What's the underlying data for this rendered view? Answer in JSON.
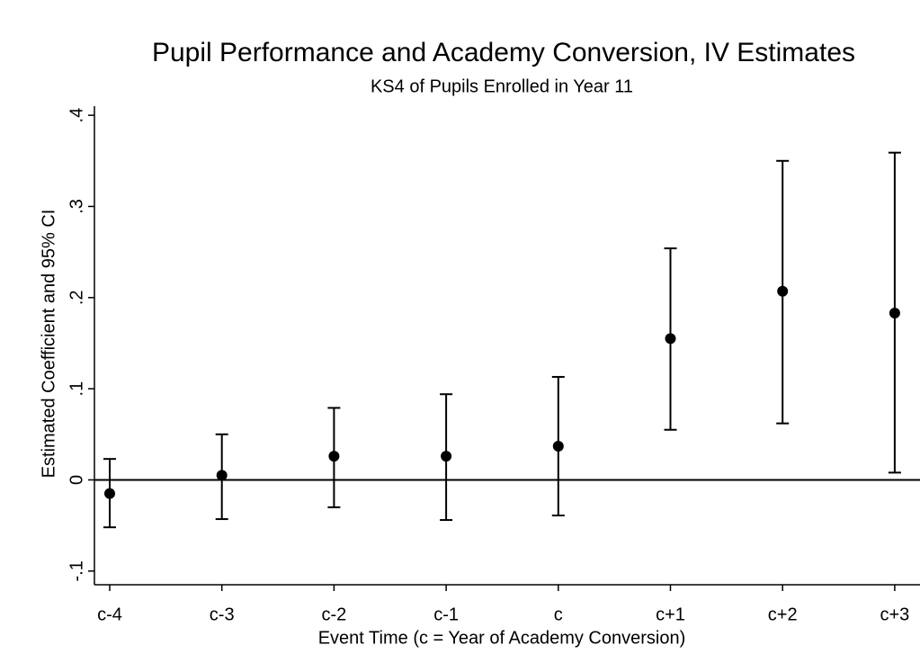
{
  "chart_data": {
    "type": "errorbar",
    "title": "Pupil Performance and Academy Conversion, IV Estimates",
    "subtitle": "KS4 of Pupils Enrolled in Year 11",
    "x_label": "Event Time (c = Year of Academy Conversion)",
    "y_label": "Estimated Coefficient and 95% CI",
    "categories": [
      "c-4",
      "c-3",
      "c-2",
      "c-1",
      "c",
      "c+1",
      "c+2",
      "c+3"
    ],
    "values": [
      -0.015,
      0.005,
      0.026,
      0.026,
      0.037,
      0.155,
      0.207,
      0.183
    ],
    "lower": [
      -0.052,
      -0.043,
      -0.03,
      -0.044,
      -0.039,
      0.055,
      0.062,
      0.008
    ],
    "upper": [
      0.023,
      0.05,
      0.079,
      0.094,
      0.113,
      0.254,
      0.35,
      0.359
    ],
    "color": "#000000",
    "reference_line": 0,
    "ylim": [
      -0.115,
      0.41
    ],
    "yticks": [
      {
        "value": -0.1,
        "label": "-.1"
      },
      0,
      {
        "value": 0.1,
        "label": ".1"
      },
      {
        "value": 0.2,
        "label": ".2"
      },
      {
        "value": 0.3,
        "label": ".3"
      },
      {
        "value": 0.4,
        "label": ".4"
      }
    ]
  }
}
